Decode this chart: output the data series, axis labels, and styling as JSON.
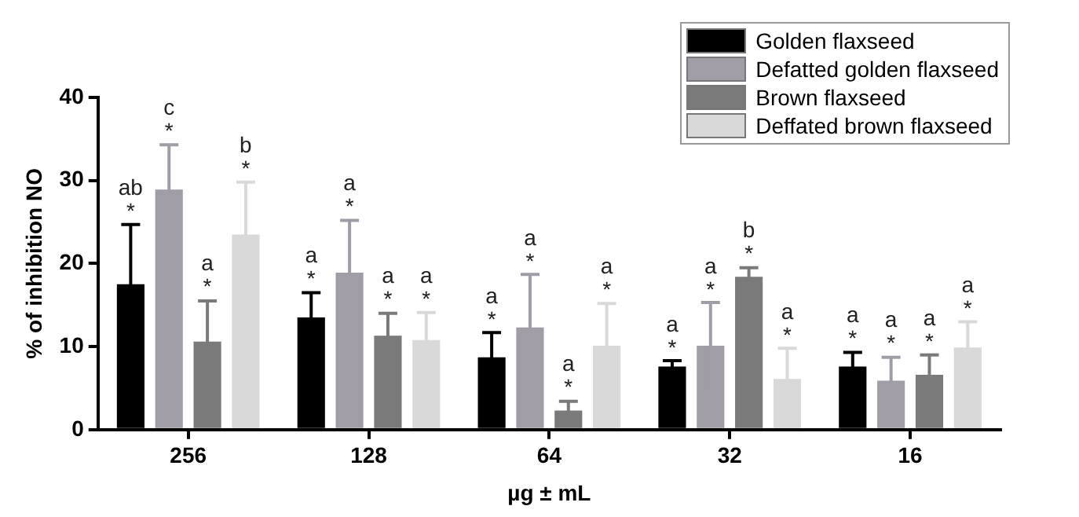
{
  "chart_data": {
    "type": "bar",
    "xlabel": "µg ± mL",
    "ylabel": "% of inhibition NO",
    "categories": [
      "256",
      "128",
      "64",
      "32",
      "16"
    ],
    "ylim": [
      0,
      40
    ],
    "yticks": [
      0,
      10,
      20,
      30,
      40
    ],
    "grid": false,
    "legend": "top right",
    "series": [
      {
        "name": "Golden flaxseed",
        "color": "#000000",
        "values": [
          17.5,
          13.5,
          8.7,
          7.6,
          7.6
        ],
        "errors": [
          7.2,
          3.0,
          3.0,
          0.7,
          1.7
        ],
        "value_labels": [
          "ab\n*",
          "a\n*",
          "a\n*",
          "a\n*",
          "a\n*"
        ]
      },
      {
        "name": "Defatted golden flaxseed",
        "color": "#a19da6",
        "values": [
          28.9,
          18.9,
          12.3,
          10.1,
          5.9
        ],
        "errors": [
          5.4,
          6.3,
          6.4,
          5.2,
          2.8
        ],
        "value_labels": [
          "c\n*",
          "a\n*",
          "a\n*",
          "a\n*",
          "a\n*"
        ]
      },
      {
        "name": "Brown flaxseed",
        "color": "#7a7a7a",
        "values": [
          10.6,
          11.3,
          2.3,
          18.4,
          6.6
        ],
        "errors": [
          4.9,
          2.7,
          1.1,
          1.1,
          2.4
        ],
        "value_labels": [
          "a\n*",
          "a\n*",
          "a\n*",
          "b\n*",
          "a\n*"
        ]
      },
      {
        "name": "Deffated brown flaxseed",
        "color": "#d9d9d9",
        "values": [
          23.5,
          10.8,
          10.1,
          6.1,
          9.9
        ],
        "errors": [
          6.3,
          3.3,
          5.1,
          3.7,
          3.1
        ],
        "value_labels": [
          "b\n*",
          "a\n*",
          "a\n*",
          "a\n*",
          "a\n*"
        ]
      }
    ]
  }
}
